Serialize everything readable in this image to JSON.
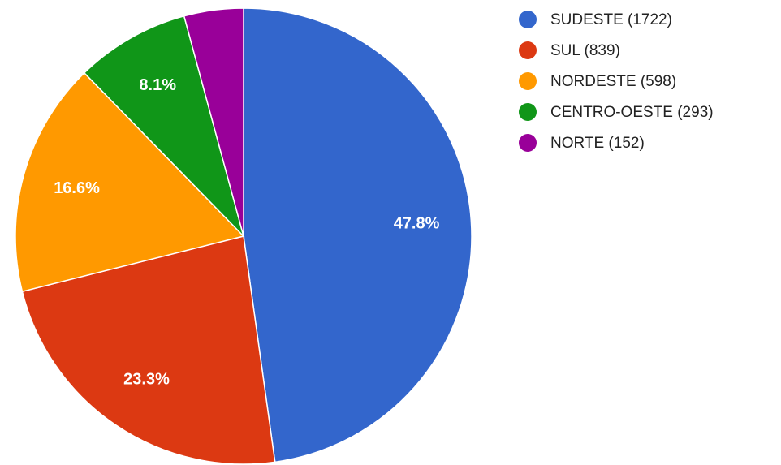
{
  "chart_data": {
    "type": "pie",
    "categories": [
      "SUDESTE (1722)",
      "SUL (839)",
      "NORDESTE (598)",
      "CENTRO-OESTE (293)",
      "NORTE (152)"
    ],
    "values": [
      47.8,
      23.3,
      16.6,
      8.1,
      4.2
    ],
    "value_labels": [
      "47.8%",
      "23.3%",
      "16.6%",
      "8.1%",
      null
    ],
    "colors": [
      "#3366cc",
      "#dc3912",
      "#ff9900",
      "#109618",
      "#990099"
    ],
    "legend": "right"
  }
}
